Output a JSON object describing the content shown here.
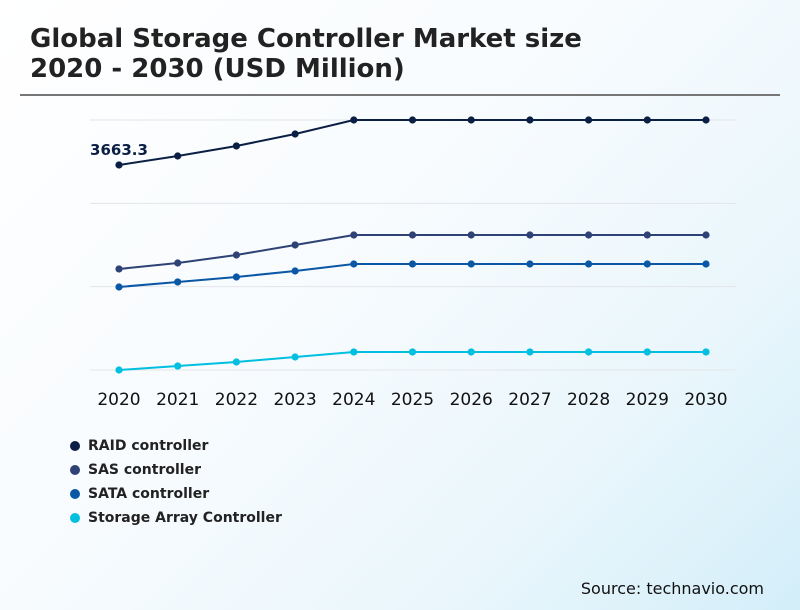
{
  "chart_data": {
    "type": "line",
    "title": "Global Storage Controller Market size 2020 - 2030 (USD Million)",
    "title_lines": [
      "Global Storage Controller Market size",
      "2020 - 2030 (USD Million)"
    ],
    "categories": [
      "2020",
      "2021",
      "2022",
      "2023",
      "2024",
      "2025",
      "2026",
      "2027",
      "2028",
      "2029",
      "2030"
    ],
    "ylim": [
      0,
      4467
    ],
    "grid": true,
    "legend_placement": "bottom-left",
    "series": [
      {
        "name": "RAID controller",
        "color": "#0b1f45",
        "values": [
          3663.3,
          3824,
          4003,
          4217,
          4467,
          4467,
          4467,
          4467,
          4467,
          4467,
          4467
        ]
      },
      {
        "name": "SAS controller",
        "color": "#2e4275",
        "values": [
          1805,
          1912,
          2055,
          2234,
          2412,
          2412,
          2412,
          2412,
          2412,
          2412,
          2412
        ]
      },
      {
        "name": "SATA controller",
        "color": "#0a57a6",
        "values": [
          1483,
          1573,
          1662,
          1769,
          1894,
          1894,
          1894,
          1894,
          1894,
          1894,
          1894
        ]
      },
      {
        "name": "Storage Array Controller",
        "color": "#00bfe0",
        "values": [
          0,
          71,
          143,
          232,
          322,
          322,
          322,
          322,
          322,
          322,
          322
        ]
      }
    ],
    "annotations": [
      {
        "series": "RAID controller",
        "category": "2020",
        "text": "3663.3"
      }
    ]
  },
  "source": "Source: technavio.com"
}
